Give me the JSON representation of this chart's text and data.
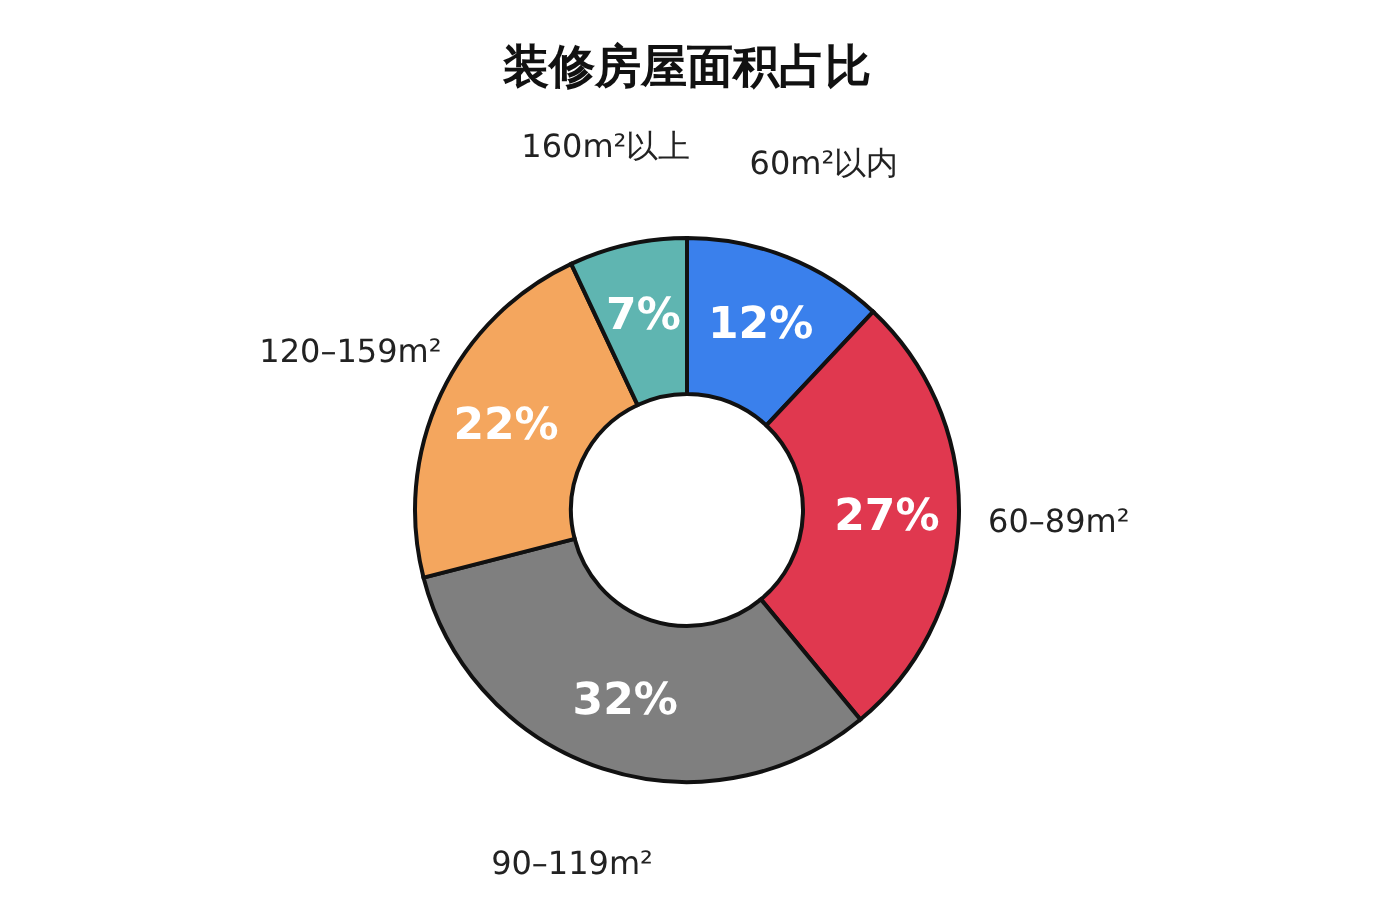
{
  "chart_data": {
    "type": "donut",
    "title": "装修房屋面积占比",
    "categories": [
      "60m²以内",
      "60–89m²",
      "90–119m²",
      "120–159m²",
      "160m²以上"
    ],
    "values": [
      12,
      27,
      32,
      22,
      7
    ],
    "value_labels": [
      "12%",
      "27%",
      "32%",
      "22%",
      "7%"
    ],
    "colors": [
      "#3a80ec",
      "#e0384f",
      "#7f7f7f",
      "#f4a65e",
      "#5fb5b1"
    ],
    "legend": false
  }
}
